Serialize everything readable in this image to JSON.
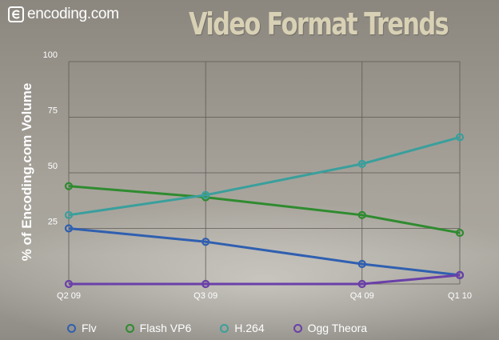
{
  "logo": {
    "text": "encoding.com"
  },
  "chart_data": {
    "type": "line",
    "title": "Video Format Trends",
    "xlabel": "",
    "ylabel": "% of Encoding.com Volume",
    "categories": [
      "Q2 09",
      "Q3 09",
      "Q4 09",
      "Q1 10"
    ],
    "x_positions": [
      0,
      1.05,
      2.25,
      3.0
    ],
    "ylim": [
      0,
      100
    ],
    "yticks": [
      25,
      50,
      75,
      100
    ],
    "grid": true,
    "legend_position": "bottom",
    "series": [
      {
        "name": "Flv",
        "color": "#2f5fb0",
        "values": [
          25,
          19,
          9,
          4
        ]
      },
      {
        "name": "Flash VP6",
        "color": "#2f8b2f",
        "values": [
          44,
          39,
          31,
          23
        ]
      },
      {
        "name": "H.264",
        "color": "#3a9f9c",
        "values": [
          31,
          40,
          54,
          66
        ]
      },
      {
        "name": "Ogg Theora",
        "color": "#6a3fa8",
        "values": [
          0,
          0,
          0,
          4
        ]
      }
    ]
  }
}
